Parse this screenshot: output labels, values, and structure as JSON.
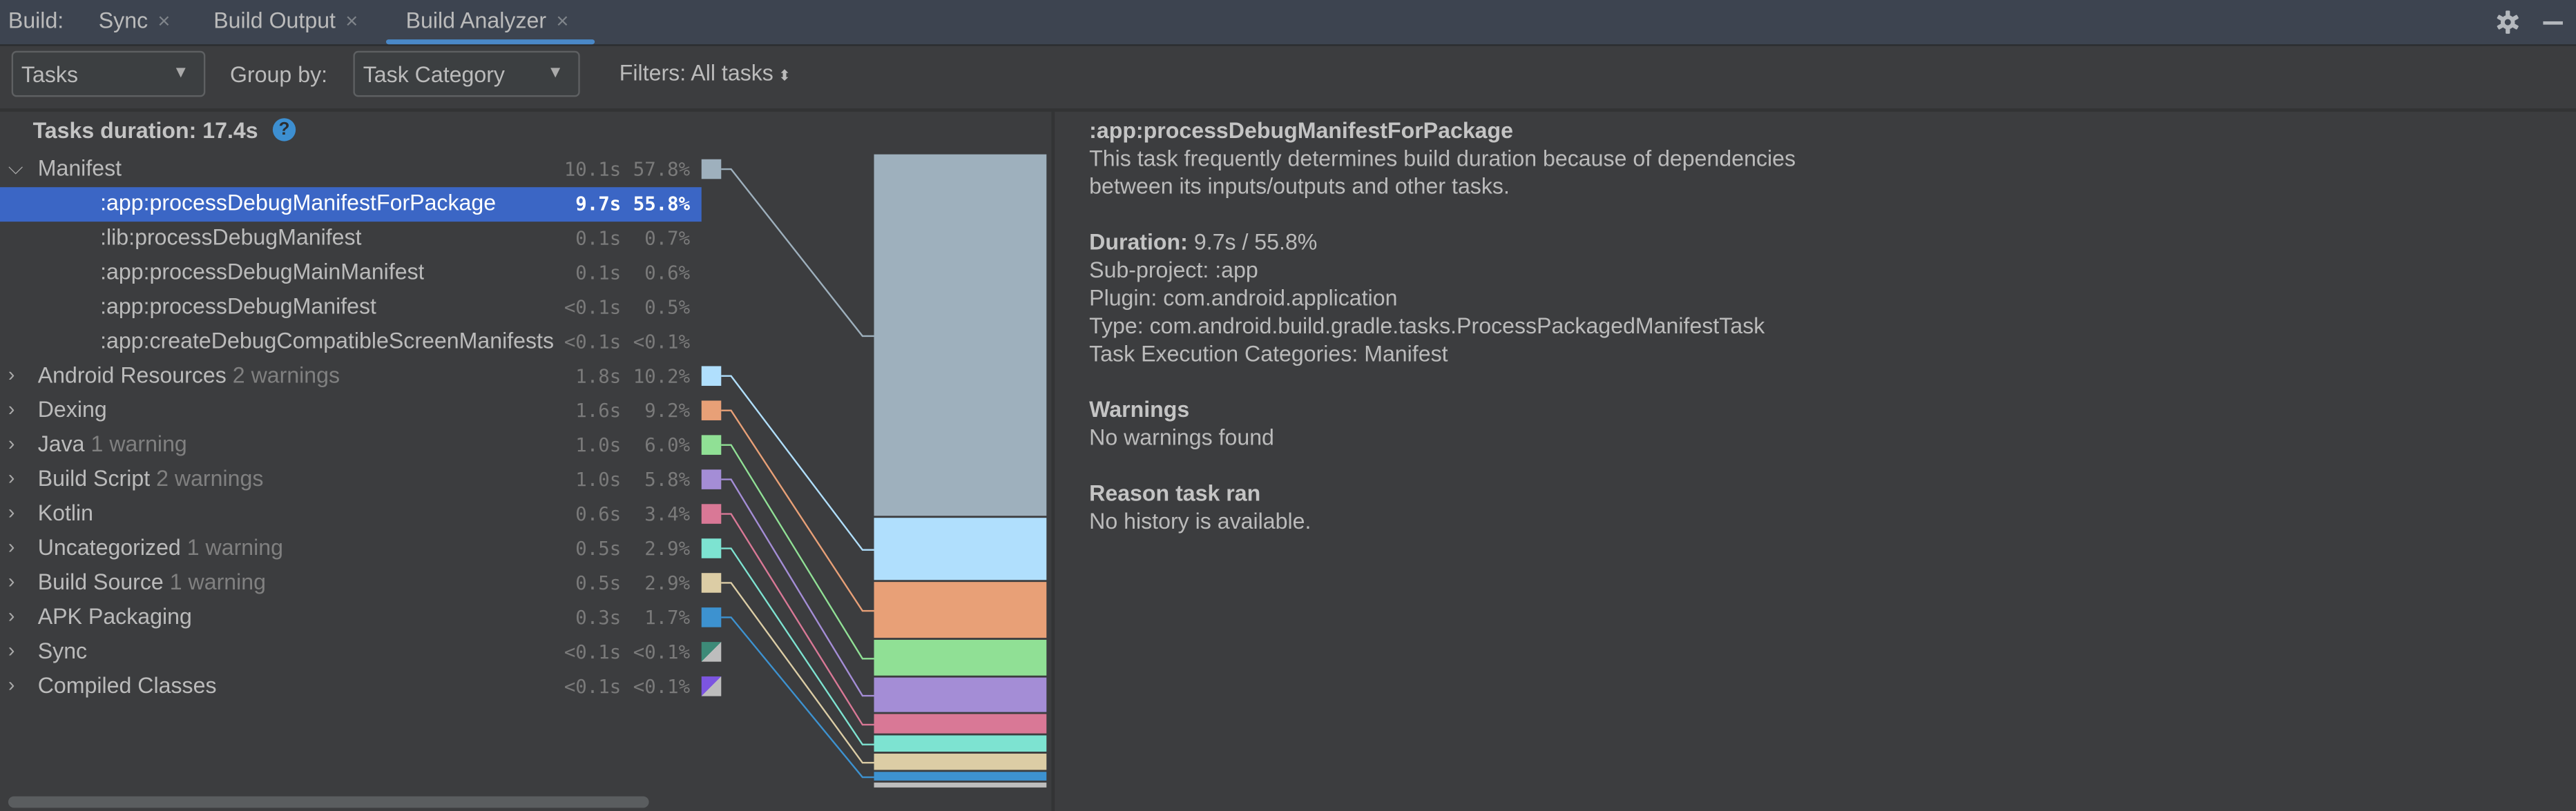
{
  "tabbar": {
    "prefix": "Build:",
    "tabs": [
      {
        "label": "Sync",
        "active": false
      },
      {
        "label": "Build Output",
        "active": false
      },
      {
        "label": "Build Analyzer",
        "active": true
      }
    ],
    "close_glyph": "×",
    "accent": "#4a88c7",
    "icons": [
      "gear-icon",
      "minimize-icon"
    ]
  },
  "toolbar": {
    "view_select": "Tasks",
    "group_by_label": "Group by:",
    "group_by_select": "Task Category",
    "filters_label": "Filters: All tasks"
  },
  "summary": {
    "label": "Tasks duration: 17.4s"
  },
  "tree": [
    {
      "label": "Manifest",
      "warning": "",
      "duration": "10.1s",
      "percent": "57.8%",
      "pct_value": 57.8,
      "color": "#9eb0bd",
      "expanded": true
    },
    {
      "label": ":app:processDebugManifestForPackage",
      "child": true,
      "selected": true,
      "duration": "9.7s",
      "percent": "55.8%"
    },
    {
      "label": ":lib:processDebugManifest",
      "child": true,
      "duration": "0.1s",
      "percent": "0.7%"
    },
    {
      "label": ":app:processDebugMainManifest",
      "child": true,
      "duration": "0.1s",
      "percent": "0.6%"
    },
    {
      "label": ":app:processDebugManifest",
      "child": true,
      "duration": "<0.1s",
      "percent": "0.5%"
    },
    {
      "label": ":app:createDebugCompatibleScreenManifests",
      "child": true,
      "duration": "<0.1s",
      "percent": "<0.1%"
    },
    {
      "label": "Android Resources",
      "warning": "2 warnings",
      "duration": "1.8s",
      "percent": "10.2%",
      "pct_value": 10.2,
      "color": "#b0dffd"
    },
    {
      "label": "Dexing",
      "warning": "",
      "duration": "1.6s",
      "percent": "9.2%",
      "pct_value": 9.2,
      "color": "#e8a077"
    },
    {
      "label": "Java",
      "warning": "1 warning",
      "duration": "1.0s",
      "percent": "6.0%",
      "pct_value": 6.0,
      "color": "#90e095"
    },
    {
      "label": "Build Script",
      "warning": "2 warnings",
      "duration": "1.0s",
      "percent": "5.8%",
      "pct_value": 5.8,
      "color": "#a48dd6"
    },
    {
      "label": "Kotlin",
      "warning": "",
      "duration": "0.6s",
      "percent": "3.4%",
      "pct_value": 3.4,
      "color": "#d97896"
    },
    {
      "label": "Uncategorized",
      "warning": "1 warning",
      "duration": "0.5s",
      "percent": "2.9%",
      "pct_value": 2.9,
      "color": "#7de3d1"
    },
    {
      "label": "Build Source",
      "warning": "1 warning",
      "duration": "0.5s",
      "percent": "2.9%",
      "pct_value": 2.9,
      "color": "#dccda5"
    },
    {
      "label": "APK Packaging",
      "warning": "",
      "duration": "0.3s",
      "percent": "1.7%",
      "pct_value": 1.7,
      "color": "#3d92d0"
    },
    {
      "label": "Sync",
      "warning": "",
      "duration": "<0.1s",
      "percent": "<0.1%",
      "color": "#3d8a78",
      "color2": "#bdbdbd"
    },
    {
      "label": "Compiled Classes",
      "warning": "",
      "duration": "<0.1s",
      "percent": "<0.1%",
      "color": "#7c55e0",
      "color2": "#bdbdbd"
    }
  ],
  "chart_remainder_color": "#bdbdbd",
  "selection_color": "#3b66c5",
  "details": {
    "title": ":app:processDebugManifestForPackage",
    "description_1": "This task frequently determines build duration because of dependencies",
    "description_2": "between its inputs/outputs and other tasks.",
    "duration_label": "Duration:",
    "duration_value": "9.7s / 55.8%",
    "subproject": "Sub-project: :app",
    "plugin": "Plugin: com.android.application",
    "type": "Type: com.android.build.gradle.tasks.ProcessPackagedManifestTask",
    "categories": "Task Execution Categories: Manifest",
    "warnings_heading": "Warnings",
    "warnings_text": "No warnings found",
    "reason_heading": "Reason task ran",
    "reason_text": "No history is available."
  }
}
